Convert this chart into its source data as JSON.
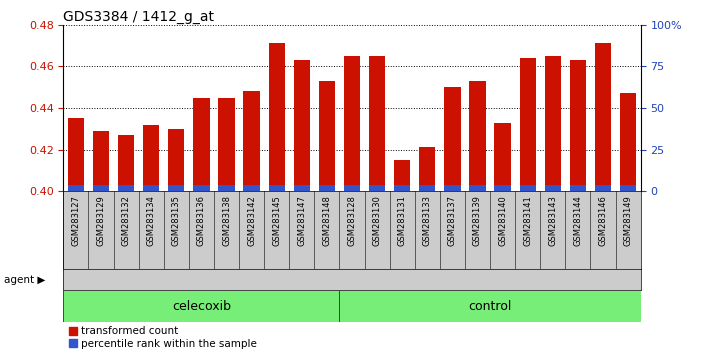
{
  "title": "GDS3384 / 1412_g_at",
  "samples": [
    "GSM283127",
    "GSM283129",
    "GSM283132",
    "GSM283134",
    "GSM283135",
    "GSM283136",
    "GSM283138",
    "GSM283142",
    "GSM283145",
    "GSM283147",
    "GSM283148",
    "GSM283128",
    "GSM283130",
    "GSM283131",
    "GSM283133",
    "GSM283137",
    "GSM283139",
    "GSM283140",
    "GSM283141",
    "GSM283143",
    "GSM283144",
    "GSM283146",
    "GSM283149"
  ],
  "red_values": [
    0.435,
    0.429,
    0.427,
    0.432,
    0.43,
    0.445,
    0.445,
    0.448,
    0.471,
    0.463,
    0.453,
    0.465,
    0.465,
    0.415,
    0.421,
    0.45,
    0.453,
    0.433,
    0.464,
    0.465,
    0.463,
    0.471,
    0.447
  ],
  "blue_heights": [
    0.003,
    0.003,
    0.003,
    0.003,
    0.003,
    0.003,
    0.003,
    0.003,
    0.003,
    0.003,
    0.003,
    0.003,
    0.003,
    0.003,
    0.003,
    0.003,
    0.003,
    0.003,
    0.003,
    0.003,
    0.003,
    0.003,
    0.003
  ],
  "celecoxib_count": 11,
  "control_count": 12,
  "ymin": 0.4,
  "ymax": 0.48,
  "yticks_left": [
    0.4,
    0.42,
    0.44,
    0.46,
    0.48
  ],
  "yticks_right": [
    0,
    25,
    50,
    75,
    100
  ],
  "ytick_labels_right": [
    "0",
    "25",
    "50",
    "75",
    "100%"
  ],
  "bar_color_red": "#cc1100",
  "bar_color_blue": "#3355cc",
  "bar_width": 0.65,
  "celecoxib_label": "celecoxib",
  "control_label": "control",
  "agent_label": "agent ▶",
  "legend_red": "transformed count",
  "legend_blue": "percentile rank within the sample",
  "group_color": "#77ee77",
  "xtick_bg_color": "#cccccc",
  "left_tick_color": "#cc1100",
  "right_tick_color": "#2244bb"
}
